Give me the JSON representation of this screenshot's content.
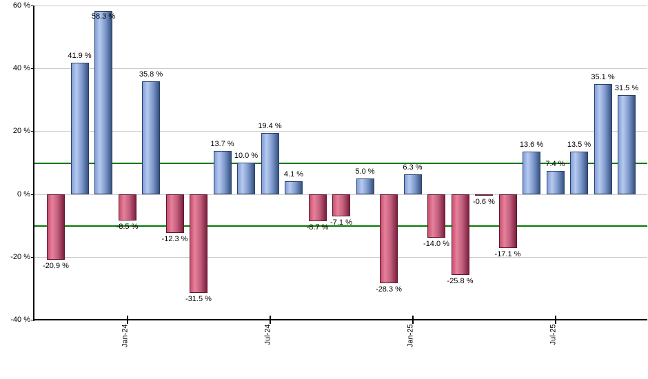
{
  "chart_data": {
    "type": "bar",
    "title": "",
    "xlabel": "",
    "ylabel": "",
    "ylim": [
      -40,
      60
    ],
    "grid": true,
    "unit": "%",
    "y_ticks": [
      {
        "value": 60,
        "label": "60 %"
      },
      {
        "value": 40,
        "label": "40 %"
      },
      {
        "value": 20,
        "label": "20 %"
      },
      {
        "value": 0,
        "label": "0 %"
      },
      {
        "value": -20,
        "label": "-20 %"
      },
      {
        "value": -40,
        "label": "-40 %"
      }
    ],
    "x_ticks": [
      {
        "bar_index": 3,
        "label": "Jan-24"
      },
      {
        "bar_index": 9,
        "label": "Jul-24"
      },
      {
        "bar_index": 15,
        "label": "Jan-25"
      },
      {
        "bar_index": 21,
        "label": "Jul-25"
      }
    ],
    "threshold_lines": [
      10,
      -10
    ],
    "bars": [
      {
        "value": -20.9,
        "label": "-20.9 %"
      },
      {
        "value": 41.9,
        "label": "41.9 %"
      },
      {
        "value": 58.3,
        "label": "58.3 %"
      },
      {
        "value": -8.5,
        "label": "-8.5 %"
      },
      {
        "value": 35.8,
        "label": "35.8 %"
      },
      {
        "value": -12.3,
        "label": "-12.3 %"
      },
      {
        "value": -31.5,
        "label": "-31.5 %"
      },
      {
        "value": 13.7,
        "label": "13.7 %"
      },
      {
        "value": 10.0,
        "label": "10.0 %"
      },
      {
        "value": 19.4,
        "label": "19.4 %"
      },
      {
        "value": 4.1,
        "label": "4.1 %"
      },
      {
        "value": -8.7,
        "label": "-8.7 %"
      },
      {
        "value": -7.1,
        "label": "-7.1 %"
      },
      {
        "value": 5.0,
        "label": "5.0 %"
      },
      {
        "value": -28.3,
        "label": "-28.3 %"
      },
      {
        "value": 6.3,
        "label": "6.3 %"
      },
      {
        "value": -14.0,
        "label": "-14.0 %"
      },
      {
        "value": -25.8,
        "label": "-25.8 %"
      },
      {
        "value": -0.6,
        "label": "-0.6 %"
      },
      {
        "value": -17.1,
        "label": "-17.1 %"
      },
      {
        "value": 13.6,
        "label": "13.6 %"
      },
      {
        "value": 7.4,
        "label": "7.4 %"
      },
      {
        "value": 13.5,
        "label": "13.5 %"
      },
      {
        "value": 35.1,
        "label": "35.1 %"
      },
      {
        "value": 31.5,
        "label": "31.5 %"
      }
    ],
    "colors": {
      "positive_fill": "#7f9edb",
      "positive_highlight": "#b7caee",
      "positive_dark": "#36527f",
      "negative_fill": "#c5506f",
      "negative_highlight": "#e8819b",
      "negative_dark": "#7c1f3e",
      "threshold_line": "#007a00",
      "gridline": "#cbcbcb",
      "axis": "#000000",
      "text": "#000000",
      "background": "#ffffff"
    },
    "legend": null
  }
}
